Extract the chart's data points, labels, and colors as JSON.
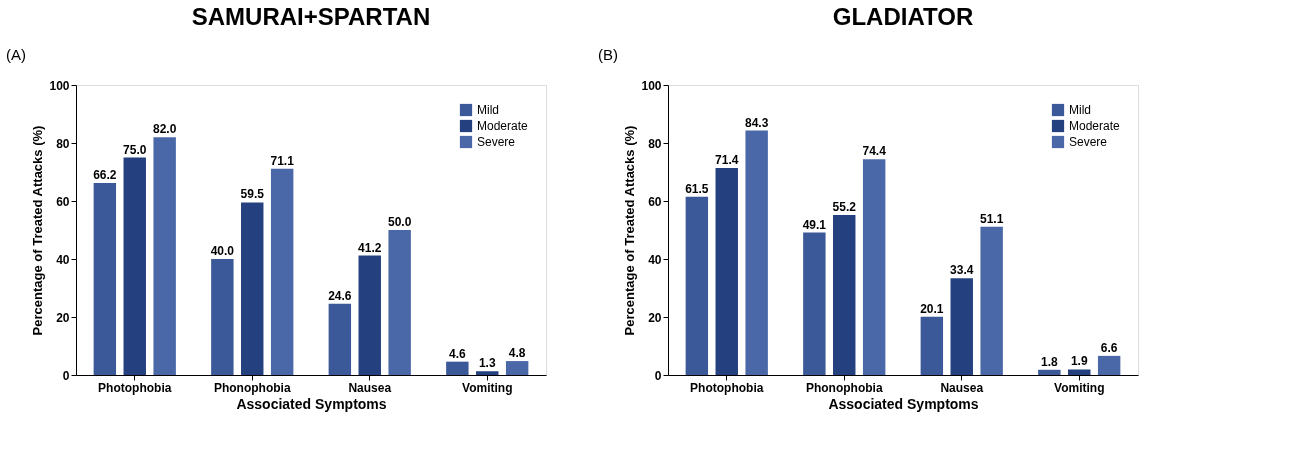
{
  "chart_data": [
    {
      "type": "bar",
      "title": "SAMURAI+SPARTAN",
      "annotations": [
        "(A)"
      ],
      "xlabel": "Associated Symptoms",
      "ylabel": "Percentage of Treated Attacks (%)",
      "categories": [
        "Photophobia",
        "Phonophobia",
        "Nausea",
        "Vomiting"
      ],
      "series": [
        {
          "name": "Mild",
          "color": "#3b5998",
          "values": [
            66.2,
            40.0,
            24.6,
            4.6
          ],
          "value_labels": [
            "66.2",
            "40.0",
            "24.6",
            "4.6"
          ]
        },
        {
          "name": "Moderate",
          "color": "#24407e",
          "values": [
            75.0,
            59.5,
            41.2,
            1.3
          ],
          "value_labels": [
            "75.0",
            "59.5",
            "41.2",
            "1.3"
          ]
        },
        {
          "name": "Severe",
          "color": "#4a68a8",
          "values": [
            82.0,
            71.1,
            50.0,
            4.8
          ],
          "value_labels": [
            "82.0",
            "71.1",
            "50.0",
            "4.8"
          ]
        }
      ],
      "ylim": [
        0,
        100
      ],
      "yticks": [
        0,
        20,
        40,
        60,
        80,
        100
      ],
      "grid": false,
      "legend": "top right"
    },
    {
      "type": "bar",
      "title": "GLADIATOR",
      "annotations": [
        "(B)"
      ],
      "xlabel": "Associated Symptoms",
      "ylabel": "Percentage of Treated Attacks (%)",
      "categories": [
        "Photophobia",
        "Phonophobia",
        "Nausea",
        "Vomiting"
      ],
      "series": [
        {
          "name": "Mild",
          "color": "#3b5998",
          "values": [
            61.5,
            49.1,
            20.1,
            1.8
          ],
          "value_labels": [
            "61.5",
            "49.1",
            "20.1",
            "1.8"
          ]
        },
        {
          "name": "Moderate",
          "color": "#24407e",
          "values": [
            71.4,
            55.2,
            33.4,
            1.9
          ],
          "value_labels": [
            "71.4",
            "55.2",
            "33.4",
            "1.9"
          ]
        },
        {
          "name": "Severe",
          "color": "#4a68a8",
          "values": [
            84.3,
            74.4,
            51.1,
            6.6
          ],
          "value_labels": [
            "84.3",
            "74.4",
            "51.1",
            "6.6"
          ]
        }
      ],
      "ylim": [
        0,
        100
      ],
      "yticks": [
        0,
        20,
        40,
        60,
        80,
        100
      ],
      "grid": false,
      "legend": "top right"
    }
  ]
}
